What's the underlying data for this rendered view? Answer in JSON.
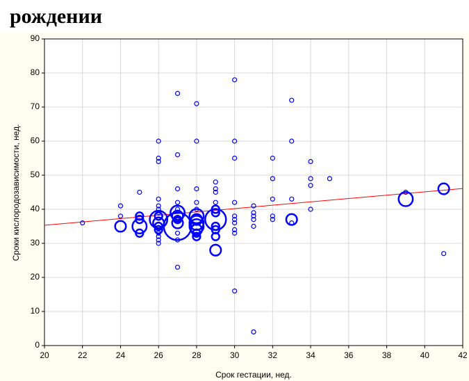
{
  "chart_data": {
    "type": "bubble",
    "title": "рождении",
    "x_label": "Срок гестации, нед.",
    "y_label": "Сроки кислородозависимости, нед.",
    "xlim": [
      20,
      42
    ],
    "xticks": [
      20,
      22,
      24,
      26,
      28,
      30,
      32,
      34,
      36,
      38,
      40,
      42
    ],
    "ylim": [
      0,
      90
    ],
    "yticks": [
      0,
      10,
      20,
      30,
      40,
      50,
      60,
      70,
      80,
      90
    ],
    "grid": true,
    "color": "#0000ff",
    "x": [
      22,
      24,
      24,
      24,
      25,
      25,
      25,
      25,
      25,
      26,
      26,
      26,
      26,
      26,
      26,
      26,
      26,
      26,
      26,
      26,
      26,
      26,
      26,
      26,
      26,
      27,
      27,
      27,
      27,
      27,
      27,
      27,
      27,
      27,
      27,
      27,
      27,
      27,
      28,
      28,
      28,
      28,
      28,
      28,
      28,
      28,
      28,
      28,
      28,
      28,
      29,
      29,
      29,
      29,
      29,
      29,
      29,
      29,
      29,
      29,
      29,
      30,
      30,
      30,
      30,
      30,
      30,
      30,
      30,
      30,
      30,
      31,
      31,
      31,
      31,
      31,
      31,
      32,
      32,
      32,
      32,
      32,
      33,
      33,
      33,
      33,
      33,
      34,
      34,
      34,
      34,
      35,
      39,
      39,
      41,
      41
    ],
    "values": [
      36,
      41,
      38,
      35,
      45,
      38,
      37,
      35,
      33,
      60,
      55,
      54,
      43,
      41,
      40,
      39,
      38,
      37,
      36,
      35,
      34,
      33,
      32,
      31,
      30,
      74,
      56,
      46,
      42,
      40,
      39,
      38,
      37,
      36,
      35,
      33,
      31,
      23,
      71,
      60,
      46,
      42,
      40,
      38,
      37,
      36,
      35,
      34,
      33,
      32,
      48,
      46,
      45,
      42,
      40,
      39,
      37,
      35,
      34,
      32,
      28,
      78,
      60,
      55,
      42,
      38,
      37,
      36,
      34,
      33,
      16,
      41,
      39,
      38,
      37,
      35,
      4,
      55,
      49,
      43,
      38,
      37,
      72,
      60,
      43,
      37,
      36,
      54,
      49,
      47,
      40,
      49,
      45,
      43,
      46,
      27
    ],
    "sizes": [
      1,
      1,
      1,
      3,
      1,
      2,
      2,
      4,
      2,
      1,
      1,
      1,
      1,
      1,
      1,
      1,
      2,
      5,
      3,
      2,
      2,
      1,
      1,
      1,
      1,
      1,
      1,
      1,
      1,
      1,
      4,
      3,
      2,
      3,
      8,
      1,
      1,
      1,
      1,
      1,
      1,
      1,
      1,
      4,
      3,
      4,
      4,
      3,
      2,
      2,
      1,
      1,
      1,
      1,
      2,
      2,
      6,
      2,
      2,
      2,
      3,
      1,
      1,
      1,
      1,
      1,
      1,
      1,
      1,
      1,
      1,
      1,
      1,
      1,
      1,
      1,
      1,
      1,
      1,
      1,
      1,
      1,
      1,
      1,
      1,
      3,
      1,
      1,
      1,
      1,
      1,
      1,
      1,
      4,
      3,
      1
    ],
    "trend_line": {
      "color": "#ff0000",
      "x": [
        20,
        42
      ],
      "values": [
        35.3,
        46.1
      ]
    }
  }
}
